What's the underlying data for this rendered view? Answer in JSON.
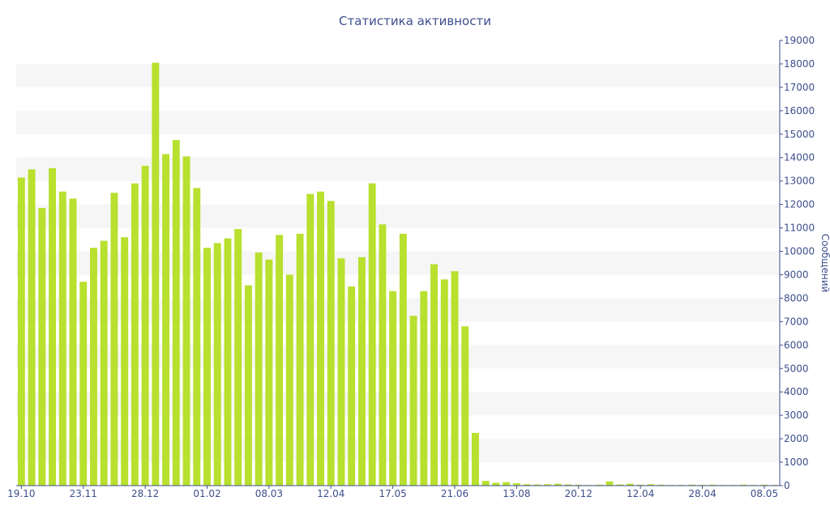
{
  "chart_data": {
    "type": "bar",
    "title": "Статистика активности",
    "xlabel": "",
    "ylabel": "Сообщений",
    "ylim": [
      0,
      19000
    ],
    "yticks": [
      0,
      1000,
      2000,
      3000,
      4000,
      5000,
      6000,
      7000,
      8000,
      9000,
      10000,
      11000,
      12000,
      13000,
      14000,
      15000,
      16000,
      17000,
      18000,
      19000
    ],
    "y_axis_side": "right",
    "grid": "alternating horizontal bands",
    "x_tick_labels": [
      {
        "label": "19.10",
        "index": 0
      },
      {
        "label": "23.11",
        "index": 6
      },
      {
        "label": "28.12",
        "index": 12
      },
      {
        "label": "01.02",
        "index": 18
      },
      {
        "label": "08.03",
        "index": 24
      },
      {
        "label": "12.04",
        "index": 30
      },
      {
        "label": "17.05",
        "index": 36
      },
      {
        "label": "21.06",
        "index": 42
      },
      {
        "label": "13.08",
        "index": 48
      },
      {
        "label": "20.12",
        "index": 54
      },
      {
        "label": "12.04",
        "index": 60
      },
      {
        "label": "28.04",
        "index": 66
      },
      {
        "label": "08.05",
        "index": 72
      }
    ],
    "values": [
      13150,
      13500,
      11850,
      13550,
      12550,
      12250,
      8700,
      10150,
      10450,
      12500,
      10600,
      12900,
      13650,
      18050,
      14150,
      14750,
      14050,
      12700,
      10150,
      10350,
      10550,
      10950,
      8550,
      9950,
      9650,
      10700,
      9000,
      10750,
      12450,
      12550,
      12150,
      9700,
      8500,
      9750,
      12900,
      11150,
      8300,
      10750,
      7250,
      8300,
      9450,
      8800,
      9150,
      6800,
      2250,
      200,
      120,
      150,
      100,
      60,
      50,
      60,
      80,
      50,
      40,
      30,
      40,
      180,
      50,
      80,
      40,
      60,
      40,
      30,
      30,
      40,
      30,
      40,
      30,
      30,
      40,
      30,
      40,
      30
    ],
    "colors": {
      "bar": "#b8e02e",
      "band": "#f6f6f6",
      "axis": "#3d4f8c",
      "text": "#3d4f8c"
    }
  }
}
